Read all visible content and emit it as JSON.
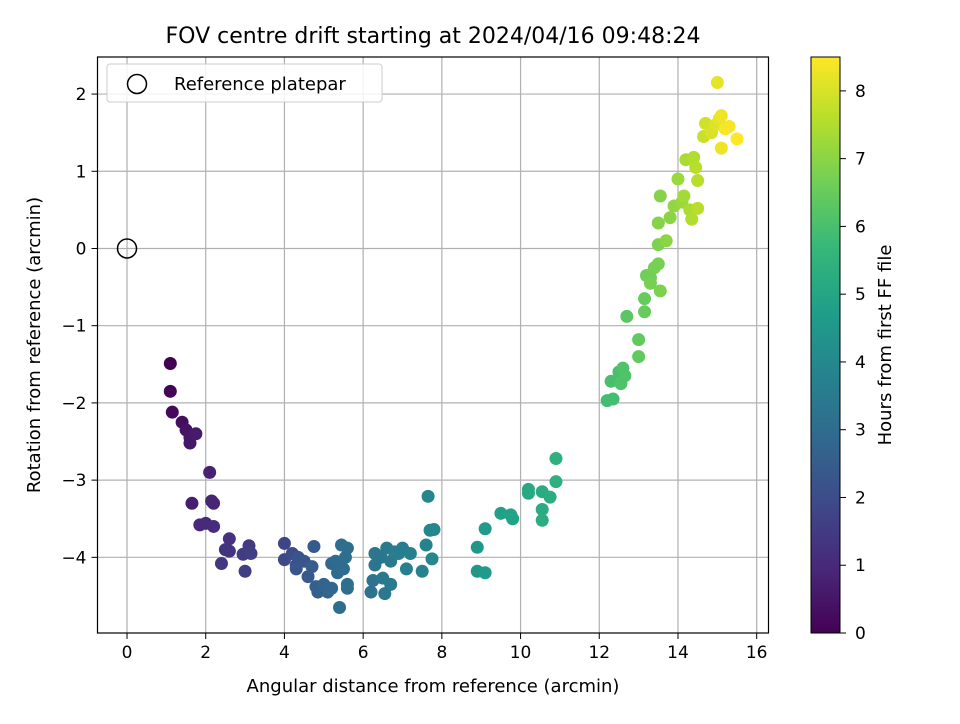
{
  "chart_data": {
    "type": "scatter",
    "title": "FOV centre drift starting at 2024/04/16 09:48:24",
    "xlabel": "Angular distance from reference (arcmin)",
    "ylabel": "Rotation from reference (arcmin)",
    "xlim": [
      -0.75,
      16.3
    ],
    "ylim": [
      -4.98,
      2.48
    ],
    "xticks": [
      0,
      2,
      4,
      6,
      8,
      10,
      12,
      14,
      16
    ],
    "yticks": [
      2,
      1,
      0,
      -1,
      -2,
      -3,
      -4
    ],
    "xtick_labels": [
      "0",
      "2",
      "4",
      "6",
      "8",
      "10",
      "12",
      "14",
      "16"
    ],
    "ytick_labels": [
      "2",
      "1",
      "0",
      "−1",
      "−2",
      "−3",
      "−4"
    ],
    "grid": true,
    "legend": {
      "position": "top-left",
      "entries": [
        "Reference platepar"
      ]
    },
    "reference_point": {
      "x": 0,
      "y": 0,
      "label": "Reference platepar",
      "marker": "open-circle"
    },
    "colorbar": {
      "label": "Hours from first FF file",
      "min": 0,
      "max": 8.5,
      "ticks": [
        0,
        1,
        2,
        3,
        4,
        5,
        6,
        7,
        8
      ],
      "tick_labels": [
        "0",
        "1",
        "2",
        "3",
        "4",
        "5",
        "6",
        "7",
        "8"
      ],
      "colormap": "viridis"
    },
    "colormap_stops": [
      "#440154",
      "#482878",
      "#3e4989",
      "#31688e",
      "#26828e",
      "#1f9e89",
      "#35b779",
      "#6ece58",
      "#b5de2b",
      "#fde725"
    ],
    "points": [
      {
        "x": 1.1,
        "y": -1.49,
        "t": 0.0
      },
      {
        "x": 1.1,
        "y": -1.85,
        "t": 0.1
      },
      {
        "x": 1.15,
        "y": -2.12,
        "t": 0.2
      },
      {
        "x": 1.4,
        "y": -2.25,
        "t": 0.3
      },
      {
        "x": 1.5,
        "y": -2.35,
        "t": 0.4
      },
      {
        "x": 1.6,
        "y": -2.45,
        "t": 0.5
      },
      {
        "x": 1.6,
        "y": -2.52,
        "t": 0.5
      },
      {
        "x": 1.75,
        "y": -2.4,
        "t": 0.6
      },
      {
        "x": 1.65,
        "y": -3.3,
        "t": 0.7
      },
      {
        "x": 2.1,
        "y": -2.9,
        "t": 0.8
      },
      {
        "x": 2.15,
        "y": -3.27,
        "t": 0.9
      },
      {
        "x": 2.2,
        "y": -3.3,
        "t": 0.9
      },
      {
        "x": 1.85,
        "y": -3.58,
        "t": 1.0
      },
      {
        "x": 2.0,
        "y": -3.56,
        "t": 1.0
      },
      {
        "x": 2.2,
        "y": -3.6,
        "t": 1.1
      },
      {
        "x": 2.6,
        "y": -3.76,
        "t": 1.2
      },
      {
        "x": 2.5,
        "y": -3.9,
        "t": 1.3
      },
      {
        "x": 2.6,
        "y": -3.92,
        "t": 1.3
      },
      {
        "x": 2.4,
        "y": -4.08,
        "t": 1.4
      },
      {
        "x": 2.95,
        "y": -3.96,
        "t": 1.5
      },
      {
        "x": 3.1,
        "y": -3.85,
        "t": 1.5
      },
      {
        "x": 3.15,
        "y": -3.95,
        "t": 1.6
      },
      {
        "x": 3.0,
        "y": -4.18,
        "t": 1.6
      },
      {
        "x": 4.0,
        "y": -3.82,
        "t": 1.8
      },
      {
        "x": 4.0,
        "y": -4.03,
        "t": 1.9
      },
      {
        "x": 4.2,
        "y": -3.95,
        "t": 2.0
      },
      {
        "x": 4.3,
        "y": -4.1,
        "t": 2.1
      },
      {
        "x": 4.35,
        "y": -4.0,
        "t": 2.2
      },
      {
        "x": 4.5,
        "y": -4.05,
        "t": 2.3
      },
      {
        "x": 4.3,
        "y": -4.15,
        "t": 2.3
      },
      {
        "x": 4.6,
        "y": -4.25,
        "t": 2.4
      },
      {
        "x": 4.75,
        "y": -3.86,
        "t": 2.4
      },
      {
        "x": 4.7,
        "y": -4.12,
        "t": 2.5
      },
      {
        "x": 4.8,
        "y": -4.38,
        "t": 2.6
      },
      {
        "x": 4.85,
        "y": -4.45,
        "t": 2.6
      },
      {
        "x": 5.0,
        "y": -4.35,
        "t": 2.7
      },
      {
        "x": 5.1,
        "y": -4.45,
        "t": 2.7
      },
      {
        "x": 5.2,
        "y": -4.4,
        "t": 2.8
      },
      {
        "x": 5.2,
        "y": -4.08,
        "t": 2.8
      },
      {
        "x": 5.3,
        "y": -4.05,
        "t": 2.9
      },
      {
        "x": 5.35,
        "y": -4.2,
        "t": 2.9
      },
      {
        "x": 5.4,
        "y": -4.65,
        "t": 3.0
      },
      {
        "x": 5.45,
        "y": -3.84,
        "t": 3.0
      },
      {
        "x": 5.5,
        "y": -4.15,
        "t": 3.0
      },
      {
        "x": 5.6,
        "y": -3.88,
        "t": 3.1
      },
      {
        "x": 5.55,
        "y": -4.0,
        "t": 3.1
      },
      {
        "x": 5.6,
        "y": -4.35,
        "t": 3.1
      },
      {
        "x": 5.6,
        "y": -4.4,
        "t": 3.1
      },
      {
        "x": 6.2,
        "y": -4.45,
        "t": 3.2
      },
      {
        "x": 6.25,
        "y": -4.3,
        "t": 3.2
      },
      {
        "x": 6.3,
        "y": -4.1,
        "t": 3.3
      },
      {
        "x": 6.3,
        "y": -3.95,
        "t": 3.3
      },
      {
        "x": 6.45,
        "y": -4.0,
        "t": 3.3
      },
      {
        "x": 6.5,
        "y": -4.27,
        "t": 3.4
      },
      {
        "x": 6.55,
        "y": -4.47,
        "t": 3.4
      },
      {
        "x": 6.6,
        "y": -3.88,
        "t": 3.5
      },
      {
        "x": 6.7,
        "y": -4.05,
        "t": 3.5
      },
      {
        "x": 6.7,
        "y": -4.35,
        "t": 3.5
      },
      {
        "x": 6.8,
        "y": -3.93,
        "t": 3.6
      },
      {
        "x": 6.9,
        "y": -3.95,
        "t": 3.6
      },
      {
        "x": 7.0,
        "y": -3.88,
        "t": 3.6
      },
      {
        "x": 7.1,
        "y": -4.15,
        "t": 3.7
      },
      {
        "x": 7.2,
        "y": -3.95,
        "t": 3.7
      },
      {
        "x": 7.5,
        "y": -4.18,
        "t": 3.8
      },
      {
        "x": 7.6,
        "y": -3.84,
        "t": 3.8
      },
      {
        "x": 7.65,
        "y": -3.21,
        "t": 3.9
      },
      {
        "x": 7.7,
        "y": -3.65,
        "t": 3.9
      },
      {
        "x": 7.8,
        "y": -3.64,
        "t": 3.9
      },
      {
        "x": 7.75,
        "y": -4.02,
        "t": 3.9
      },
      {
        "x": 8.9,
        "y": -3.87,
        "t": 4.5
      },
      {
        "x": 8.9,
        "y": -4.18,
        "t": 4.5
      },
      {
        "x": 9.1,
        "y": -3.63,
        "t": 4.6
      },
      {
        "x": 9.1,
        "y": -4.2,
        "t": 4.6
      },
      {
        "x": 9.5,
        "y": -3.43,
        "t": 4.8
      },
      {
        "x": 9.75,
        "y": -3.45,
        "t": 4.9
      },
      {
        "x": 9.8,
        "y": -3.5,
        "t": 4.9
      },
      {
        "x": 10.2,
        "y": -3.12,
        "t": 5.1
      },
      {
        "x": 10.2,
        "y": -3.17,
        "t": 5.1
      },
      {
        "x": 10.55,
        "y": -3.15,
        "t": 5.2
      },
      {
        "x": 10.55,
        "y": -3.38,
        "t": 5.2
      },
      {
        "x": 10.55,
        "y": -3.52,
        "t": 5.3
      },
      {
        "x": 10.75,
        "y": -3.22,
        "t": 5.3
      },
      {
        "x": 10.9,
        "y": -3.02,
        "t": 5.4
      },
      {
        "x": 10.9,
        "y": -2.72,
        "t": 5.4
      },
      {
        "x": 12.2,
        "y": -1.97,
        "t": 5.9
      },
      {
        "x": 12.35,
        "y": -1.95,
        "t": 5.9
      },
      {
        "x": 12.3,
        "y": -1.72,
        "t": 6.0
      },
      {
        "x": 12.5,
        "y": -1.6,
        "t": 6.0
      },
      {
        "x": 12.6,
        "y": -1.55,
        "t": 6.1
      },
      {
        "x": 12.55,
        "y": -1.75,
        "t": 6.1
      },
      {
        "x": 12.65,
        "y": -1.65,
        "t": 6.1
      },
      {
        "x": 12.7,
        "y": -0.88,
        "t": 6.3
      },
      {
        "x": 13.0,
        "y": -1.18,
        "t": 6.4
      },
      {
        "x": 13.0,
        "y": -1.4,
        "t": 6.4
      },
      {
        "x": 13.15,
        "y": -0.65,
        "t": 6.5
      },
      {
        "x": 13.15,
        "y": -0.82,
        "t": 6.5
      },
      {
        "x": 13.2,
        "y": -0.35,
        "t": 6.6
      },
      {
        "x": 13.3,
        "y": -0.38,
        "t": 6.6
      },
      {
        "x": 13.3,
        "y": -0.45,
        "t": 6.7
      },
      {
        "x": 13.4,
        "y": -0.25,
        "t": 6.7
      },
      {
        "x": 13.5,
        "y": -0.2,
        "t": 6.7
      },
      {
        "x": 13.55,
        "y": -0.55,
        "t": 6.8
      },
      {
        "x": 13.5,
        "y": 0.05,
        "t": 6.8
      },
      {
        "x": 13.5,
        "y": 0.33,
        "t": 6.9
      },
      {
        "x": 13.55,
        "y": 0.68,
        "t": 6.9
      },
      {
        "x": 13.7,
        "y": 0.1,
        "t": 7.0
      },
      {
        "x": 13.8,
        "y": 0.4,
        "t": 7.0
      },
      {
        "x": 13.9,
        "y": 0.55,
        "t": 7.1
      },
      {
        "x": 14.0,
        "y": 0.9,
        "t": 7.2
      },
      {
        "x": 14.1,
        "y": 0.6,
        "t": 7.2
      },
      {
        "x": 14.15,
        "y": 0.68,
        "t": 7.3
      },
      {
        "x": 14.2,
        "y": 1.15,
        "t": 7.4
      },
      {
        "x": 14.3,
        "y": 0.5,
        "t": 7.4
      },
      {
        "x": 14.35,
        "y": 0.38,
        "t": 7.5
      },
      {
        "x": 14.4,
        "y": 1.18,
        "t": 7.5
      },
      {
        "x": 14.45,
        "y": 1.05,
        "t": 7.6
      },
      {
        "x": 14.5,
        "y": 0.88,
        "t": 7.6
      },
      {
        "x": 14.5,
        "y": 0.52,
        "t": 7.6
      },
      {
        "x": 14.65,
        "y": 1.45,
        "t": 7.8
      },
      {
        "x": 14.7,
        "y": 1.62,
        "t": 7.9
      },
      {
        "x": 14.85,
        "y": 1.5,
        "t": 8.0
      },
      {
        "x": 14.95,
        "y": 1.6,
        "t": 8.1
      },
      {
        "x": 15.0,
        "y": 2.15,
        "t": 8.2
      },
      {
        "x": 15.05,
        "y": 1.68,
        "t": 8.2
      },
      {
        "x": 15.1,
        "y": 1.72,
        "t": 8.3
      },
      {
        "x": 15.1,
        "y": 1.3,
        "t": 8.3
      },
      {
        "x": 15.2,
        "y": 1.55,
        "t": 8.4
      },
      {
        "x": 15.3,
        "y": 1.58,
        "t": 8.4
      },
      {
        "x": 15.5,
        "y": 1.42,
        "t": 8.5
      }
    ]
  }
}
